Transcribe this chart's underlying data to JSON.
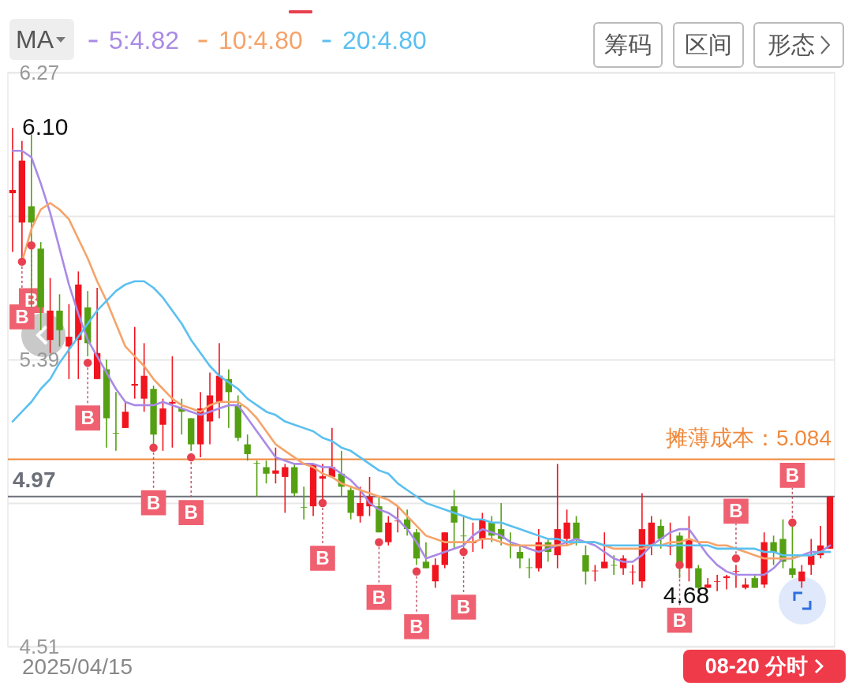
{
  "chart_data": {
    "type": "candlestick",
    "categories": [
      null,
      null,
      null,
      null,
      null,
      null,
      null,
      null,
      null,
      null,
      null,
      null,
      null,
      null,
      null,
      null,
      null,
      null,
      null,
      null,
      null,
      null,
      null,
      null,
      null,
      null,
      null,
      null,
      null,
      null,
      null,
      null,
      null,
      null,
      null,
      null,
      null,
      null,
      null,
      null,
      null,
      null,
      null,
      null,
      null,
      null,
      null,
      null,
      null,
      null,
      null,
      null,
      null,
      null,
      null,
      null,
      null,
      null,
      null,
      null,
      null,
      null,
      null,
      null,
      null,
      null,
      null,
      null,
      null,
      null,
      null,
      null,
      null,
      null,
      null,
      null,
      null,
      null,
      null,
      null,
      null,
      null,
      null,
      null,
      null,
      null,
      null,
      null
    ],
    "ohlc": [
      [
        5.9,
        6.1,
        5.72,
        5.91
      ],
      [
        5.81,
        6.06,
        5.7,
        6.0
      ],
      [
        5.86,
        6.08,
        5.55,
        5.81
      ],
      [
        5.73,
        5.75,
        5.48,
        5.55
      ],
      [
        5.45,
        5.64,
        5.41,
        5.54
      ],
      [
        5.54,
        5.59,
        5.43,
        5.48
      ],
      [
        5.43,
        5.56,
        5.33,
        5.46
      ],
      [
        5.45,
        5.66,
        5.33,
        5.62
      ],
      [
        5.55,
        5.6,
        5.4,
        5.44
      ],
      [
        5.33,
        5.61,
        5.33,
        5.41
      ],
      [
        5.36,
        5.39,
        5.12,
        5.21
      ],
      [
        5.165,
        5.29,
        5.11,
        5.163
      ],
      [
        5.18,
        5.26,
        5.18,
        5.23
      ],
      [
        5.31,
        5.49,
        5.27,
        5.315
      ],
      [
        5.27,
        5.44,
        5.23,
        5.34
      ],
      [
        5.3,
        5.31,
        5.13,
        5.16
      ],
      [
        5.19,
        5.27,
        5.11,
        5.24
      ],
      [
        5.255,
        5.4,
        5.12,
        5.26
      ],
      [
        5.24,
        5.27,
        5.16,
        5.23
      ],
      [
        5.21,
        5.21,
        5.11,
        5.13
      ],
      [
        5.13,
        5.29,
        5.09,
        5.24
      ],
      [
        5.2,
        5.35,
        5.13,
        5.28
      ],
      [
        5.26,
        5.44,
        5.21,
        5.34
      ],
      [
        5.33,
        5.36,
        5.18,
        5.29
      ],
      [
        5.25,
        5.28,
        5.14,
        5.15
      ],
      [
        5.13,
        5.16,
        5.08,
        5.1
      ],
      [
        5.073,
        5.08,
        4.97,
        5.071
      ],
      [
        5.06,
        5.08,
        5.01,
        5.04
      ],
      [
        5.04,
        5.12,
        5.01,
        5.05
      ],
      [
        5.03,
        5.07,
        4.92,
        5.06
      ],
      [
        5.06,
        5.07,
        4.97,
        4.98
      ],
      [
        4.938,
        5.0,
        4.9,
        4.936
      ],
      [
        4.94,
        5.07,
        4.91,
        5.07
      ],
      [
        5.025,
        5.07,
        4.94,
        5.032
      ],
      [
        5.03,
        5.18,
        5.03,
        5.06
      ],
      [
        5.04,
        5.11,
        4.97,
        5.0
      ],
      [
        4.99,
        5.0,
        4.9,
        4.92
      ],
      [
        4.91,
        5.0,
        4.89,
        4.95
      ],
      [
        4.94,
        5.03,
        4.91,
        4.97
      ],
      [
        4.94,
        4.97,
        4.86,
        4.86
      ],
      [
        4.83,
        4.91,
        4.82,
        4.89
      ],
      [
        4.894,
        4.94,
        4.86,
        4.896
      ],
      [
        4.9,
        4.93,
        4.85,
        4.87
      ],
      [
        4.86,
        4.87,
        4.76,
        4.78
      ],
      [
        4.77,
        4.83,
        4.75,
        4.75
      ],
      [
        4.71,
        4.78,
        4.69,
        4.76
      ],
      [
        4.76,
        4.86,
        4.75,
        4.86
      ],
      [
        4.94,
        4.99,
        4.81,
        4.89
      ],
      [
        4.85,
        4.91,
        4.81,
        4.848
      ],
      [
        4.827,
        4.89,
        4.8,
        4.832
      ],
      [
        4.84,
        4.92,
        4.81,
        4.9
      ],
      [
        4.89,
        4.91,
        4.83,
        4.85
      ],
      [
        4.87,
        4.95,
        4.82,
        4.84
      ],
      [
        4.824,
        4.86,
        4.78,
        4.822
      ],
      [
        4.8,
        4.82,
        4.75,
        4.78
      ],
      [
        4.753,
        4.78,
        4.72,
        4.751
      ],
      [
        4.75,
        4.87,
        4.74,
        4.83
      ],
      [
        4.83,
        4.84,
        4.77,
        4.8
      ],
      [
        4.79,
        5.07,
        4.75,
        4.87
      ],
      [
        4.84,
        4.93,
        4.82,
        4.89
      ],
      [
        4.89,
        4.91,
        4.82,
        4.84
      ],
      [
        4.79,
        4.82,
        4.7,
        4.74
      ],
      [
        4.741,
        4.76,
        4.71,
        4.743
      ],
      [
        4.75,
        4.86,
        4.75,
        4.77
      ],
      [
        4.76,
        4.79,
        4.73,
        4.758
      ],
      [
        4.75,
        4.79,
        4.73,
        4.78
      ],
      [
        4.737,
        4.76,
        4.7,
        4.739
      ],
      [
        4.71,
        4.98,
        4.69,
        4.87
      ],
      [
        4.82,
        4.91,
        4.79,
        4.89
      ],
      [
        4.88,
        4.9,
        4.81,
        4.84
      ],
      [
        4.816,
        4.89,
        4.79,
        4.818
      ],
      [
        4.85,
        4.86,
        4.72,
        4.76
      ],
      [
        4.75,
        4.91,
        4.71,
        4.84
      ],
      [
        4.75,
        4.76,
        4.685,
        4.69
      ],
      [
        4.69,
        4.72,
        4.69,
        4.7
      ],
      [
        4.708,
        4.73,
        4.68,
        4.71
      ],
      [
        4.72,
        4.73,
        4.685,
        4.725
      ],
      [
        4.74,
        4.76,
        4.69,
        4.742
      ],
      [
        4.69,
        4.72,
        4.685,
        4.7
      ],
      [
        4.72,
        4.73,
        4.69,
        4.69
      ],
      [
        4.7,
        4.86,
        4.69,
        4.83
      ],
      [
        4.83,
        4.85,
        4.76,
        4.8
      ],
      [
        4.84,
        4.9,
        4.75,
        4.77
      ],
      [
        4.75,
        4.88,
        4.72,
        4.73
      ],
      [
        4.71,
        4.76,
        4.69,
        4.74
      ],
      [
        4.76,
        4.84,
        4.73,
        4.79
      ],
      [
        4.79,
        4.88,
        4.78,
        4.82
      ],
      [
        4.81,
        4.97,
        4.81,
        4.97
      ]
    ],
    "series": [
      {
        "name": "5:4.82",
        "type": "line",
        "color": "#a98ae6",
        "values": [
          6.03,
          6.03,
          6.01,
          5.93,
          5.84,
          5.73,
          5.62,
          5.53,
          5.45,
          5.4,
          5.35,
          5.3,
          5.26,
          5.25,
          5.25,
          5.25,
          5.26,
          5.25,
          5.24,
          5.23,
          5.22,
          5.23,
          5.24,
          5.25,
          5.25,
          5.21,
          5.17,
          5.13,
          5.09,
          5.08,
          5.07,
          5.07,
          5.07,
          5.06,
          5.06,
          5.04,
          5.02,
          4.99,
          4.95,
          4.93,
          4.92,
          4.9,
          4.87,
          4.83,
          4.78,
          4.79,
          4.8,
          4.81,
          4.82,
          4.85,
          4.87,
          4.86,
          4.85,
          4.83,
          4.82,
          4.81,
          4.8,
          4.81,
          4.82,
          4.83,
          4.84,
          4.83,
          4.82,
          4.8,
          4.78,
          4.77,
          4.77,
          4.79,
          4.82,
          4.84,
          4.86,
          4.87,
          4.87,
          4.83,
          4.79,
          4.76,
          4.74,
          4.73,
          4.73,
          4.73,
          4.73,
          4.75,
          4.78,
          4.78,
          4.79,
          4.8,
          4.8,
          4.82
        ]
      },
      {
        "name": "10:4.80",
        "type": "line",
        "color": "#f5a36a",
        "values": [
          null,
          5.69,
          5.79,
          5.85,
          5.87,
          5.85,
          5.82,
          5.76,
          5.7,
          5.63,
          5.57,
          5.5,
          5.43,
          5.4,
          5.37,
          5.33,
          5.3,
          5.27,
          5.25,
          5.24,
          5.23,
          5.25,
          5.26,
          5.26,
          5.26,
          5.24,
          5.21,
          5.17,
          5.13,
          5.11,
          5.09,
          5.07,
          5.06,
          5.04,
          5.03,
          5.01,
          5.0,
          4.99,
          4.98,
          4.97,
          4.96,
          4.94,
          4.91,
          4.88,
          4.85,
          4.84,
          4.83,
          4.83,
          4.83,
          4.83,
          4.84,
          4.84,
          4.83,
          4.82,
          4.82,
          4.82,
          4.82,
          4.82,
          4.82,
          4.82,
          4.83,
          4.83,
          4.83,
          4.82,
          4.81,
          4.81,
          4.81,
          4.81,
          4.82,
          4.82,
          4.83,
          4.83,
          4.84,
          4.83,
          4.83,
          4.82,
          4.82,
          4.81,
          4.8,
          4.79,
          4.78,
          4.78,
          4.78,
          4.78,
          4.79,
          4.79,
          4.8,
          4.8
        ]
      },
      {
        "name": "20:4.80",
        "type": "line",
        "color": "#5bc0f0",
        "values": [
          5.2,
          5.23,
          5.26,
          5.3,
          5.33,
          5.38,
          5.42,
          5.46,
          5.5,
          5.54,
          5.57,
          5.6,
          5.62,
          5.63,
          5.63,
          5.61,
          5.58,
          5.54,
          5.5,
          5.45,
          5.41,
          5.37,
          5.34,
          5.32,
          5.3,
          5.27,
          5.25,
          5.23,
          5.22,
          5.2,
          5.19,
          5.18,
          5.17,
          5.15,
          5.14,
          5.12,
          5.11,
          5.09,
          5.07,
          5.05,
          5.04,
          5.01,
          4.99,
          4.97,
          4.95,
          4.94,
          4.93,
          4.92,
          4.91,
          4.9,
          4.9,
          4.89,
          4.89,
          4.88,
          4.87,
          4.86,
          4.85,
          4.84,
          4.84,
          4.83,
          4.83,
          4.83,
          4.83,
          4.82,
          4.82,
          4.82,
          4.82,
          4.82,
          4.82,
          4.82,
          4.82,
          4.82,
          4.82,
          4.82,
          4.82,
          4.81,
          4.81,
          4.81,
          4.81,
          4.81,
          4.8,
          4.8,
          4.79,
          4.79,
          4.79,
          4.79,
          4.8,
          4.8
        ]
      },
      {
        "type": "scatter",
        "color": "#e8404f",
        "values": [
          null,
          5.69,
          5.74,
          null,
          null,
          null,
          null,
          null,
          5.38,
          null,
          null,
          null,
          null,
          null,
          null,
          5.12,
          null,
          null,
          null,
          5.09,
          null,
          null,
          null,
          null,
          null,
          null,
          null,
          null,
          null,
          null,
          null,
          null,
          null,
          4.95,
          null,
          null,
          null,
          null,
          null,
          4.83,
          null,
          null,
          null,
          4.74,
          null,
          null,
          null,
          null,
          4.8,
          null,
          null,
          null,
          null,
          null,
          null,
          null,
          null,
          null,
          null,
          null,
          null,
          null,
          null,
          null,
          null,
          null,
          null,
          null,
          null,
          null,
          null,
          4.76,
          null,
          null,
          null,
          null,
          null,
          4.78,
          null,
          null,
          null,
          null,
          null,
          4.89,
          null,
          null,
          null,
          null
        ],
        "value_labels": [
          null,
          "B",
          "B",
          null,
          null,
          null,
          null,
          null,
          "B",
          null,
          null,
          null,
          null,
          null,
          null,
          "B",
          null,
          null,
          null,
          "B",
          null,
          null,
          null,
          null,
          null,
          null,
          null,
          null,
          null,
          null,
          null,
          null,
          null,
          "B",
          null,
          null,
          null,
          null,
          null,
          "B",
          null,
          null,
          null,
          "B",
          null,
          null,
          null,
          null,
          "B",
          null,
          null,
          null,
          null,
          null,
          null,
          null,
          null,
          null,
          null,
          null,
          null,
          null,
          null,
          null,
          null,
          null,
          null,
          null,
          null,
          null,
          null,
          "B",
          null,
          null,
          null,
          null,
          null,
          "B",
          null,
          null,
          null,
          null,
          null,
          "B",
          null,
          null,
          null,
          null
        ]
      }
    ],
    "ylim": [
      4.51,
      6.27
    ],
    "yticks": [
      6.27,
      {
        "value": 5.83,
        "label": null
      },
      5.39,
      {
        "value": 4.95,
        "label": null
      },
      4.51
    ],
    "grid": "y",
    "tick_labels": "y",
    "legend": "top left",
    "ref_lines": [
      {
        "axis": "y",
        "value": 5.084,
        "label": "摊薄成本：5.084",
        "color": "#f0893c"
      },
      {
        "axis": "y",
        "value": 4.97,
        "label": "4.97",
        "color": "#6b6f78"
      }
    ],
    "annotations": [
      "MA",
      "筹码",
      "区间",
      "形态",
      "08-20 分时",
      "6.10",
      "4.68",
      "2025/04/15"
    ]
  }
}
